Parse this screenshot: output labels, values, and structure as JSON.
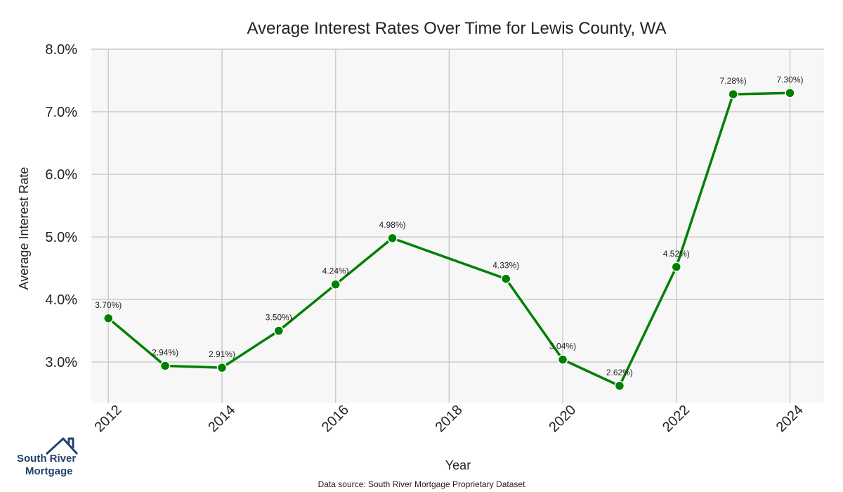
{
  "chart_data": {
    "type": "line",
    "title": "Average Interest Rates Over Time for Lewis County, WA",
    "xlabel": "Year",
    "ylabel": "Average Interest Rate",
    "x": [
      2012,
      2013,
      2014,
      2015,
      2016,
      2017,
      2019,
      2020,
      2021,
      2022,
      2023,
      2024
    ],
    "series": [
      {
        "name": "",
        "values": [
          3.7,
          2.94,
          2.91,
          3.5,
          4.24,
          4.98,
          4.33,
          3.04,
          2.62,
          4.52,
          7.28,
          7.3
        ],
        "labels": [
          "3.70%)",
          "2.94%)",
          "2.91%)",
          "3.50%)",
          "4.24%)",
          "4.98%)",
          "4.33%)",
          "3.04%)",
          "2.62%)",
          "4.52%)",
          "7.28%)",
          "7.30%)"
        ],
        "color": "#008000"
      }
    ],
    "xlim": [
      2011.7,
      2024.6
    ],
    "ylim": [
      2.35,
      8.0
    ],
    "xticks": [
      2012,
      2014,
      2016,
      2018,
      2020,
      2022,
      2024
    ],
    "xtick_labels": [
      "2012",
      "2014",
      "2016",
      "2018",
      "2020",
      "2022",
      "2024"
    ],
    "yticks": [
      3,
      4,
      5,
      6,
      7,
      8
    ],
    "ytick_labels": [
      "3.0%",
      "4.0%",
      "5.0%",
      "6.0%",
      "7.0%",
      "8.0%"
    ],
    "grid": true,
    "background_color": "#f7f7f7",
    "grid_color": "#cccccc",
    "source_note": "Data source: South River Mortgage Proprietary Dataset"
  },
  "logo": {
    "line1": "South River",
    "line2": "Mortgage",
    "color": "#24406e"
  }
}
